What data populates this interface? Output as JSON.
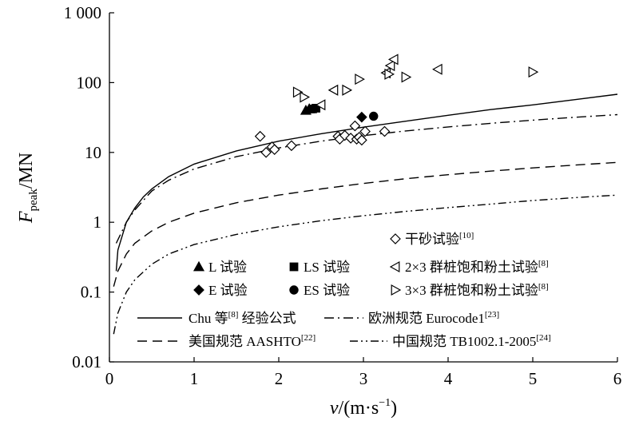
{
  "chart_data": {
    "type": "scatter",
    "xlabel_main": "v",
    "xlabel_unit": "/(m·s",
    "xlabel_exp": "−1",
    "xlabel_close": ")",
    "ylabel_main": "F",
    "ylabel_sub": "peak",
    "ylabel_unit": "/MN",
    "xlim": [
      0,
      6
    ],
    "ylim": [
      0.01,
      1000
    ],
    "yscale": "log",
    "x_ticks": [
      {
        "value": 0,
        "label": "0"
      },
      {
        "value": 1,
        "label": "1"
      },
      {
        "value": 2,
        "label": "2"
      },
      {
        "value": 3,
        "label": "3"
      },
      {
        "value": 4,
        "label": "4"
      },
      {
        "value": 5,
        "label": "5"
      },
      {
        "value": 6,
        "label": "6"
      }
    ],
    "y_ticks": [
      {
        "value": 0.01,
        "label": "0.01"
      },
      {
        "value": 0.1,
        "label": "0.1"
      },
      {
        "value": 1,
        "label": "1"
      },
      {
        "value": 10,
        "label": "10"
      },
      {
        "value": 100,
        "label": "100"
      },
      {
        "value": 1000,
        "label": "1 000"
      }
    ],
    "curves": [
      {
        "id": "chu",
        "name": "Chu 等",
        "ref": "[8]",
        "suffix": " 经验公式",
        "style": "solid",
        "points": [
          [
            0.08,
            0.2
          ],
          [
            0.1,
            0.4
          ],
          [
            0.2,
            1.0
          ],
          [
            0.3,
            1.6
          ],
          [
            0.4,
            2.3
          ],
          [
            0.5,
            3.0
          ],
          [
            0.7,
            4.5
          ],
          [
            1.0,
            6.8
          ],
          [
            1.5,
            10.5
          ],
          [
            2.0,
            14.5
          ],
          [
            2.5,
            18.5
          ],
          [
            3.0,
            23
          ],
          [
            3.5,
            28
          ],
          [
            4.0,
            34
          ],
          [
            4.5,
            41
          ],
          [
            5.0,
            48
          ],
          [
            5.5,
            57
          ],
          [
            6.0,
            68
          ]
        ]
      },
      {
        "id": "euro",
        "name": "欧洲规范 Eurocode1",
        "ref": "[23]",
        "suffix": "",
        "style": "dashdot",
        "points": [
          [
            0.08,
            0.5
          ],
          [
            0.2,
            1.0
          ],
          [
            0.3,
            1.5
          ],
          [
            0.5,
            2.8
          ],
          [
            0.7,
            4.0
          ],
          [
            1.0,
            5.8
          ],
          [
            1.5,
            8.7
          ],
          [
            2.0,
            11.6
          ],
          [
            2.5,
            14.5
          ],
          [
            3.0,
            17.4
          ],
          [
            3.5,
            20.3
          ],
          [
            4.0,
            23.2
          ],
          [
            4.5,
            26.1
          ],
          [
            5.0,
            29
          ],
          [
            5.5,
            31.9
          ],
          [
            6.0,
            34.8
          ]
        ]
      },
      {
        "id": "aashto",
        "name": "美国规范 AASHTO",
        "ref": "[22]",
        "suffix": "",
        "style": "dashed",
        "points": [
          [
            0.05,
            0.12
          ],
          [
            0.1,
            0.2
          ],
          [
            0.2,
            0.35
          ],
          [
            0.3,
            0.5
          ],
          [
            0.5,
            0.75
          ],
          [
            0.7,
            1.0
          ],
          [
            1.0,
            1.35
          ],
          [
            1.5,
            1.9
          ],
          [
            2.0,
            2.45
          ],
          [
            2.5,
            3.0
          ],
          [
            3.0,
            3.6
          ],
          [
            3.5,
            4.2
          ],
          [
            4.0,
            4.8
          ],
          [
            4.5,
            5.4
          ],
          [
            5.0,
            6.0
          ],
          [
            5.5,
            6.6
          ],
          [
            6.0,
            7.2
          ]
        ]
      },
      {
        "id": "tb",
        "name": "中国规范 TB1002.1-2005",
        "ref": "[24]",
        "suffix": "",
        "style": "dashdotdot",
        "points": [
          [
            0.05,
            0.025
          ],
          [
            0.1,
            0.05
          ],
          [
            0.2,
            0.1
          ],
          [
            0.3,
            0.15
          ],
          [
            0.5,
            0.25
          ],
          [
            0.7,
            0.35
          ],
          [
            1.0,
            0.48
          ],
          [
            1.5,
            0.67
          ],
          [
            2.0,
            0.86
          ],
          [
            2.5,
            1.05
          ],
          [
            3.0,
            1.24
          ],
          [
            3.5,
            1.43
          ],
          [
            4.0,
            1.62
          ],
          [
            4.5,
            1.82
          ],
          [
            5.0,
            2.05
          ],
          [
            5.5,
            2.25
          ],
          [
            6.0,
            2.45
          ]
        ]
      }
    ],
    "series": [
      {
        "id": "dry_sand",
        "name": "干砂试验",
        "ref": "[10]",
        "marker": "diamond-open",
        "points": [
          [
            1.78,
            17
          ],
          [
            1.85,
            10
          ],
          [
            1.92,
            12
          ],
          [
            1.95,
            11
          ],
          [
            2.15,
            12.5
          ],
          [
            2.7,
            17
          ],
          [
            2.72,
            15.5
          ],
          [
            2.78,
            17.5
          ],
          [
            2.85,
            16
          ],
          [
            2.9,
            24
          ],
          [
            2.92,
            15.5
          ],
          [
            2.95,
            16.5
          ],
          [
            2.98,
            15
          ],
          [
            3.02,
            20
          ],
          [
            3.25,
            20
          ]
        ]
      },
      {
        "id": "l_test",
        "name": "L 试验",
        "ref": "",
        "marker": "triangle-filled",
        "points": [
          [
            2.32,
            40
          ],
          [
            2.36,
            42
          ]
        ]
      },
      {
        "id": "ls_test",
        "name": "LS 试验",
        "ref": "",
        "marker": "square-filled",
        "points": [
          [
            2.4,
            42
          ],
          [
            2.44,
            43
          ]
        ]
      },
      {
        "id": "e_test",
        "name": "E 试验",
        "ref": "",
        "marker": "diamond-filled",
        "points": [
          [
            2.98,
            32
          ]
        ]
      },
      {
        "id": "es_test",
        "name": "ES 试验",
        "ref": "",
        "marker": "circle-filled",
        "points": [
          [
            3.12,
            33
          ]
        ]
      },
      {
        "id": "group_2x3",
        "name": "2×3 群桩饱和粉土试验",
        "ref": "[8]",
        "marker": "triangle-left-open",
        "points": [
          [
            2.5,
            48
          ],
          [
            2.65,
            78
          ],
          [
            3.27,
            138
          ],
          [
            3.32,
            175
          ],
          [
            3.36,
            215
          ],
          [
            3.88,
            155
          ]
        ]
      },
      {
        "id": "group_3x3",
        "name": "3×3 群桩饱和粉土试验",
        "ref": "[8]",
        "marker": "triangle-right-open",
        "points": [
          [
            2.22,
            73
          ],
          [
            2.3,
            62
          ],
          [
            2.8,
            78
          ],
          [
            2.95,
            112
          ],
          [
            3.3,
            132
          ],
          [
            3.5,
            120
          ],
          [
            5.0,
            142
          ]
        ]
      }
    ]
  }
}
